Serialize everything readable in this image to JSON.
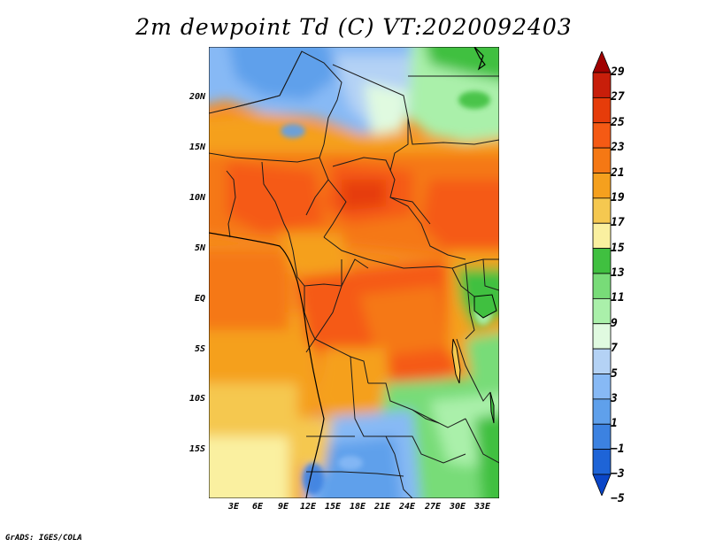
{
  "title": "2m dewpoint Td (C) VT:2020092403",
  "lat_labels": [
    "20N",
    "15N",
    "10N",
    "5N",
    "EQ",
    "5S",
    "10S",
    "15S"
  ],
  "lon_labels": [
    "3E",
    "6E",
    "9E",
    "12E",
    "15E",
    "18E",
    "21E",
    "24E",
    "27E",
    "30E",
    "33E"
  ],
  "colorbar": {
    "labels": [
      "29",
      "27",
      "25",
      "23",
      "21",
      "19",
      "17",
      "15",
      "13",
      "11",
      "9",
      "7",
      "5",
      "3",
      "1",
      "−1",
      "−3",
      "−5"
    ],
    "colors": [
      "#a00000",
      "#c81e0a",
      "#e63c0a",
      "#f55a14",
      "#f57814",
      "#f5a01e",
      "#f5c850",
      "#faf0a0",
      "#40c040",
      "#78dc78",
      "#aaf0aa",
      "#e0fae0",
      "#b4d2f5",
      "#87b9f5",
      "#5fa0eb",
      "#3c82e1",
      "#1e64d7",
      "#0a46c8"
    ]
  },
  "credit": "GrADS: IGES/COLA"
}
